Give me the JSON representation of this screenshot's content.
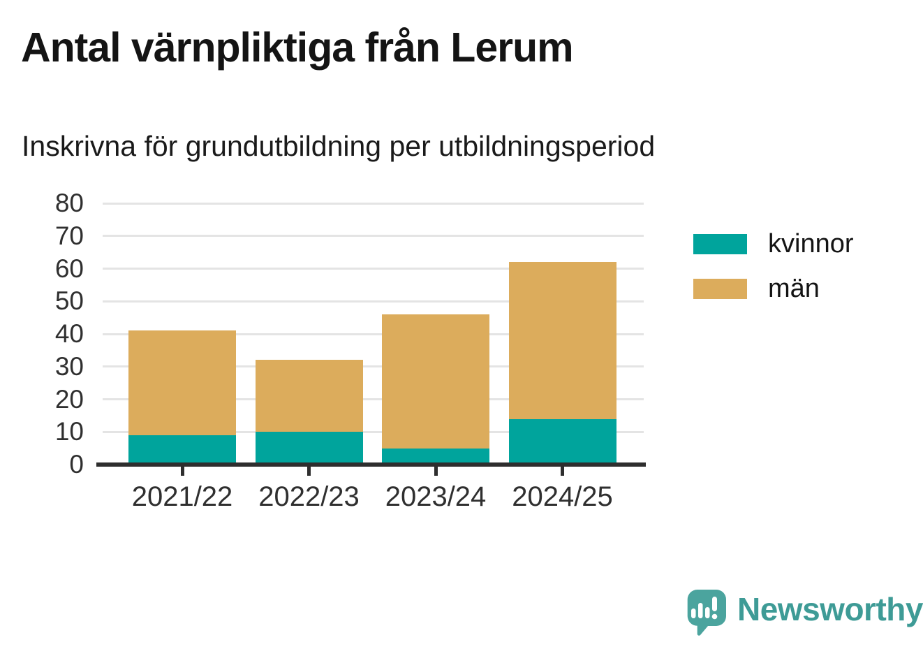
{
  "chart": {
    "title": "Antal värnpliktiga från Lerum",
    "subtitle": "Inskrivna för grundutbildning per utbildningsperiod"
  },
  "chart_data": {
    "type": "bar",
    "stacked": true,
    "categories": [
      "2021/22",
      "2022/23",
      "2023/24",
      "2024/25"
    ],
    "series": [
      {
        "name": "kvinnor",
        "color": "#00a49c",
        "values": [
          9,
          10,
          5,
          14
        ]
      },
      {
        "name": "män",
        "color": "#dcac5c",
        "values": [
          32,
          22,
          41,
          48
        ]
      }
    ],
    "totals": [
      41,
      32,
      46,
      62
    ],
    "title": "Antal värnpliktiga från Lerum",
    "subtitle": "Inskrivna för grundutbildning per utbildningsperiod",
    "xlabel": "",
    "ylabel": "",
    "ylim": [
      0,
      80
    ],
    "yticks": [
      0,
      10,
      20,
      30,
      40,
      50,
      60,
      70,
      80
    ],
    "grid": true,
    "legend_position": "right",
    "legend_entries": [
      "kvinnor",
      "män"
    ]
  },
  "style_colors": {
    "axis": "#2e2e2e",
    "gridline": "#e4e4e4",
    "text": "#2f2f2f",
    "kvinnor": "#00a49c",
    "man": "#dcac5c"
  },
  "brand": {
    "name": "Newsworthy",
    "color": "#3e9b96",
    "icon": "newsworthy-speech-bubble-chart-icon",
    "icon_color": "#4ba49e"
  }
}
